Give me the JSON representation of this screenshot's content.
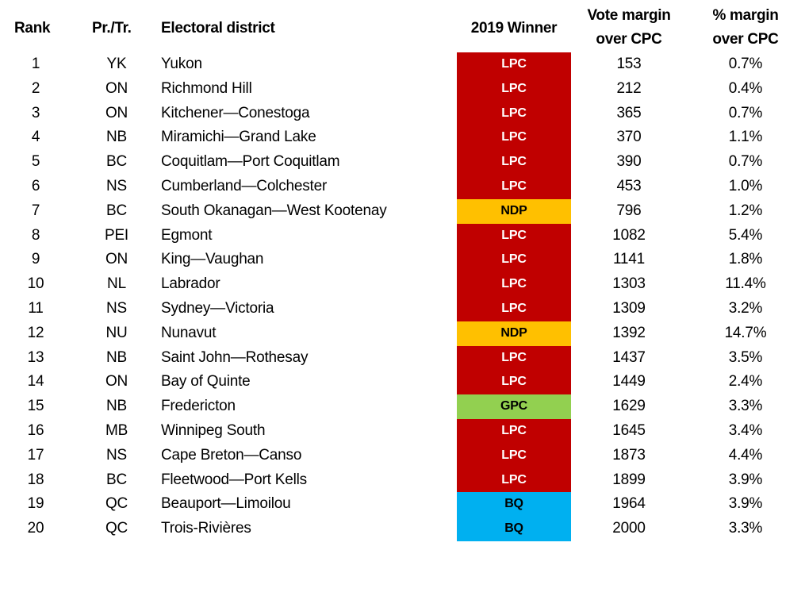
{
  "headers": {
    "rank": "Rank",
    "province": "Pr./Tr.",
    "district": "Electoral district",
    "winner": "2019 Winner",
    "vote_margin": [
      "Vote margin",
      "over CPC"
    ],
    "pct_margin": [
      "% margin",
      "over CPC"
    ]
  },
  "party_colors": {
    "LPC": {
      "bg": "#c00000",
      "fg": "#ffffff"
    },
    "NDP": {
      "bg": "#ffc000",
      "fg": "#000000"
    },
    "GPC": {
      "bg": "#92d050",
      "fg": "#000000"
    },
    "BQ": {
      "bg": "#00b0f0",
      "fg": "#000000"
    }
  },
  "rows": [
    {
      "rank": "1",
      "prov": "YK",
      "district": "Yukon",
      "winner": "LPC",
      "vote": "153",
      "pct": "0.7%"
    },
    {
      "rank": "2",
      "prov": "ON",
      "district": "Richmond Hill",
      "winner": "LPC",
      "vote": "212",
      "pct": "0.4%"
    },
    {
      "rank": "3",
      "prov": "ON",
      "district": "Kitchener—Conestoga",
      "winner": "LPC",
      "vote": "365",
      "pct": "0.7%"
    },
    {
      "rank": "4",
      "prov": "NB",
      "district": "Miramichi—Grand Lake",
      "winner": "LPC",
      "vote": "370",
      "pct": "1.1%"
    },
    {
      "rank": "5",
      "prov": "BC",
      "district": "Coquitlam—Port Coquitlam",
      "winner": "LPC",
      "vote": "390",
      "pct": "0.7%"
    },
    {
      "rank": "6",
      "prov": "NS",
      "district": "Cumberland—Colchester",
      "winner": "LPC",
      "vote": "453",
      "pct": "1.0%"
    },
    {
      "rank": "7",
      "prov": "BC",
      "district": "South Okanagan—West Kootenay",
      "winner": "NDP",
      "vote": "796",
      "pct": "1.2%"
    },
    {
      "rank": "8",
      "prov": "PEI",
      "district": "Egmont",
      "winner": "LPC",
      "vote": "1082",
      "pct": "5.4%"
    },
    {
      "rank": "9",
      "prov": "ON",
      "district": "King—Vaughan",
      "winner": "LPC",
      "vote": "1141",
      "pct": "1.8%"
    },
    {
      "rank": "10",
      "prov": "NL",
      "district": "Labrador",
      "winner": "LPC",
      "vote": "1303",
      "pct": "11.4%"
    },
    {
      "rank": "11",
      "prov": "NS",
      "district": "Sydney—Victoria",
      "winner": "LPC",
      "vote": "1309",
      "pct": "3.2%"
    },
    {
      "rank": "12",
      "prov": "NU",
      "district": "Nunavut",
      "winner": "NDP",
      "vote": "1392",
      "pct": "14.7%"
    },
    {
      "rank": "13",
      "prov": "NB",
      "district": "Saint John—Rothesay",
      "winner": "LPC",
      "vote": "1437",
      "pct": "3.5%"
    },
    {
      "rank": "14",
      "prov": "ON",
      "district": "Bay of Quinte",
      "winner": "LPC",
      "vote": "1449",
      "pct": "2.4%"
    },
    {
      "rank": "15",
      "prov": "NB",
      "district": "Fredericton",
      "winner": "GPC",
      "vote": "1629",
      "pct": "3.3%"
    },
    {
      "rank": "16",
      "prov": "MB",
      "district": "Winnipeg South",
      "winner": "LPC",
      "vote": "1645",
      "pct": "3.4%"
    },
    {
      "rank": "17",
      "prov": "NS",
      "district": "Cape Breton—Canso",
      "winner": "LPC",
      "vote": "1873",
      "pct": "4.4%"
    },
    {
      "rank": "18",
      "prov": "BC",
      "district": "Fleetwood—Port Kells",
      "winner": "LPC",
      "vote": "1899",
      "pct": "3.9%"
    },
    {
      "rank": "19",
      "prov": "QC",
      "district": "Beauport—Limoilou",
      "winner": "BQ",
      "vote": "1964",
      "pct": "3.9%"
    },
    {
      "rank": "20",
      "prov": "QC",
      "district": "Trois-Rivières",
      "winner": "BQ",
      "vote": "2000",
      "pct": "3.3%"
    }
  ]
}
